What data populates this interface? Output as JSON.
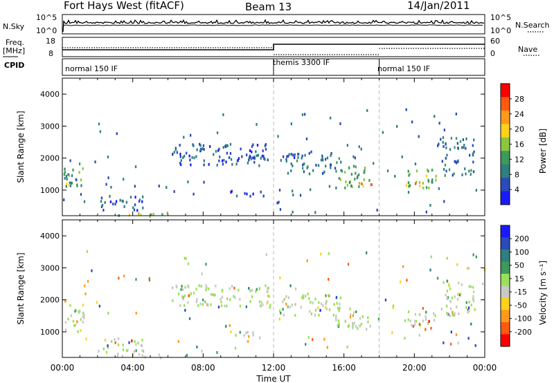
{
  "header": {
    "station": "Fort Hays West (fitACF)",
    "beam": "Beam 13",
    "date": "14/Jan/2011"
  },
  "top_panel": {
    "left_label": "N.Sky",
    "right_label": "N.Search",
    "left_ticks": [
      "10^5",
      "10^0"
    ],
    "right_ticks": [
      "10^5",
      "10^0"
    ]
  },
  "freq_panel": {
    "left_label_line1": "Freq.",
    "left_label_line2": "[MHz]",
    "right_label": "Nave",
    "left_ticks": [
      "18",
      "8"
    ],
    "right_ticks": [
      "60",
      "0"
    ]
  },
  "cpid_panel": {
    "label": "CPID",
    "segments": [
      {
        "label": "normal 150 IF",
        "start_hour": 0,
        "end_hour": 12
      },
      {
        "label": "themis 3300 IF",
        "start_hour": 12,
        "end_hour": 18
      },
      {
        "label": "normal 150 IF",
        "start_hour": 18,
        "end_hour": 24
      }
    ]
  },
  "colors": {
    "power_scale": [
      "#1a1aff",
      "#2a4bb8",
      "#2e7f7f",
      "#3d9a5a",
      "#8cc63f",
      "#ffd21a",
      "#ff9a1a",
      "#ff5a10",
      "#ff0000"
    ],
    "velocity_scale": [
      "#1a1aff",
      "#2a4bb8",
      "#2e7f7f",
      "#3d9a5a",
      "#9be05a",
      "#c8c8c8",
      "#ffd21a",
      "#ff9a1a",
      "#ff5a10",
      "#ff0000"
    ],
    "ground_scatter": "#c8c8c8"
  },
  "chart_data": [
    {
      "type": "heatmap",
      "panel": "power",
      "xlabel": "",
      "ylabel": "Slant Range [km]",
      "xlim": [
        0,
        24
      ],
      "ylim": [
        200,
        4500
      ],
      "yticks": [
        "1000",
        "2000",
        "3000",
        "4000"
      ],
      "colorbar_label": "Power [dB]",
      "colorbar_ticks": [
        "4",
        "8",
        "12",
        "16",
        "20",
        "24",
        "28"
      ],
      "colorbar_range": [
        0,
        30
      ],
      "scatter_regions": [
        {
          "t0": 0.05,
          "t1": 1.2,
          "r0": 1000,
          "r1": 1900,
          "value": 10
        },
        {
          "t0": 0.05,
          "t1": 0.5,
          "r0": 1050,
          "r1": 1300,
          "value": 20
        },
        {
          "t0": 2.0,
          "t1": 4.6,
          "r0": 400,
          "r1": 850,
          "value": 6
        },
        {
          "t0": 3.0,
          "t1": 6.2,
          "r0": 220,
          "r1": 350,
          "value": 14
        },
        {
          "t0": 6.2,
          "t1": 11.8,
          "r0": 1800,
          "r1": 2500,
          "value": 6
        },
        {
          "t0": 9.5,
          "t1": 11.5,
          "r0": 850,
          "r1": 1050,
          "value": 6
        },
        {
          "t0": 12.3,
          "t1": 15.8,
          "r0": 1550,
          "r1": 2200,
          "value": 7
        },
        {
          "t0": 15.5,
          "t1": 17.5,
          "r0": 1100,
          "r1": 1800,
          "value": 12
        },
        {
          "t0": 16.8,
          "t1": 17.6,
          "r0": 1150,
          "r1": 1350,
          "value": 21
        },
        {
          "t0": 19.4,
          "t1": 21.2,
          "r0": 1100,
          "r1": 1700,
          "value": 14
        },
        {
          "t0": 19.8,
          "t1": 20.5,
          "r0": 1150,
          "r1": 1350,
          "value": 21
        },
        {
          "t0": 21.5,
          "t1": 23.4,
          "r0": 1500,
          "r1": 2700,
          "value": 8
        }
      ]
    },
    {
      "type": "heatmap",
      "panel": "velocity",
      "xlabel": "Time UT",
      "ylabel": "Slant Range [km]",
      "xlim": [
        0,
        24
      ],
      "ylim": [
        200,
        4500
      ],
      "xticks": [
        "00:00",
        "04:00",
        "08:00",
        "12:00",
        "16:00",
        "20:00",
        "00:00"
      ],
      "yticks": [
        "1000",
        "2000",
        "3000",
        "4000"
      ],
      "colorbar_label": "Velocity [m s⁻¹]",
      "colorbar_ticks": [
        "200",
        "100",
        "50",
        "15",
        "-15",
        "-50",
        "-100",
        "-200"
      ],
      "colorbar_range": [
        -250,
        250
      ],
      "scatter_regions": [
        {
          "t0": 0.05,
          "t1": 1.2,
          "r0": 1000,
          "r1": 1900,
          "value": 0
        },
        {
          "t0": 2.0,
          "t1": 4.6,
          "r0": 400,
          "r1": 850,
          "value": 0
        },
        {
          "t0": 3.0,
          "t1": 6.2,
          "r0": 220,
          "r1": 350,
          "value": -40
        },
        {
          "t0": 6.2,
          "t1": 11.8,
          "r0": 1800,
          "r1": 2500,
          "value": 0
        },
        {
          "t0": 9.5,
          "t1": 11.5,
          "r0": 850,
          "r1": 1050,
          "value": -40
        },
        {
          "t0": 12.3,
          "t1": 15.8,
          "r0": 1550,
          "r1": 2200,
          "value": 0
        },
        {
          "t0": 15.5,
          "t1": 17.5,
          "r0": 1100,
          "r1": 1800,
          "value": 0
        },
        {
          "t0": 19.4,
          "t1": 21.2,
          "r0": 1100,
          "r1": 1700,
          "value": 0
        },
        {
          "t0": 21.5,
          "t1": 23.4,
          "r0": 1500,
          "r1": 2700,
          "value": 0
        }
      ]
    }
  ]
}
